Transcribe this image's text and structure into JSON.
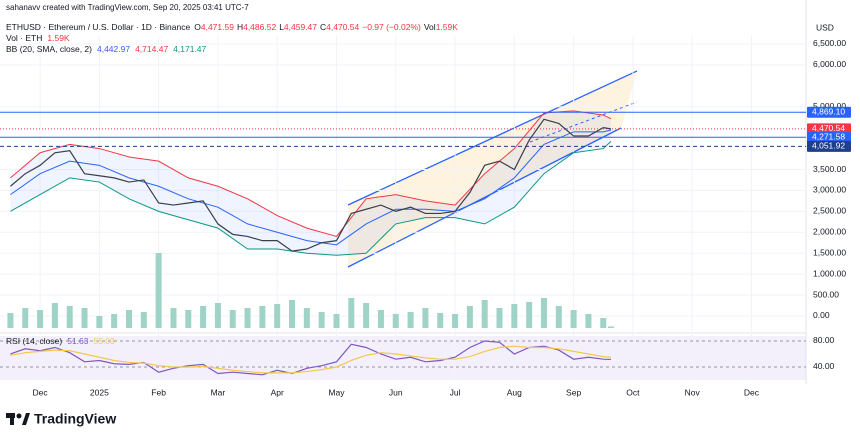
{
  "attribution": "sahanavv created with TradingView.com, Sep 20, 2025 03:41 UTC-7",
  "brand": "TradingView",
  "chart_data": {
    "type": "line",
    "currency": "USD",
    "symbol": "ETHUSD · Ethereum / U.S. Dollar · 1D · Binance",
    "ohlc": [
      {
        "key": "O",
        "text": "4,471.59"
      },
      {
        "key": "H",
        "text": "4,486.52"
      },
      {
        "key": "L",
        "text": "4,459.47"
      },
      {
        "key": "C",
        "text": "4,470.54"
      }
    ],
    "change": "−0.97 (−0.02%)",
    "volume_legend": {
      "key": "Vol",
      "text": "1.59K"
    },
    "volume_title": "Vol · ETH",
    "volume_text": "1.59K",
    "bb_title": "BB (20, SMA, close, 2)",
    "bb_texts": [
      "4,442.97",
      "4,714.47",
      "4,171.47"
    ],
    "rsi_title": "RSI (14, close)",
    "rsi_texts": [
      "51.63",
      "55.03"
    ],
    "x": [
      -0.5,
      -0.25,
      0,
      0.25,
      0.5,
      0.75,
      1,
      1.25,
      1.5,
      1.75,
      2,
      2.25,
      2.5,
      2.75,
      3,
      3.25,
      3.5,
      3.75,
      4,
      4.25,
      4.5,
      4.75,
      5,
      5.25,
      5.5,
      5.75,
      6,
      6.25,
      6.5,
      6.75,
      7,
      7.25,
      7.5,
      7.75,
      8,
      8.25,
      8.5,
      8.75,
      9,
      9.25,
      9.5,
      9.63
    ],
    "xlim": [
      -0.676,
      12.92
    ],
    "xticks": [
      {
        "value": 0,
        "label": "Dec"
      },
      {
        "value": 1,
        "label": "2025"
      },
      {
        "value": 2,
        "label": "Feb"
      },
      {
        "value": 3,
        "label": "Mar"
      },
      {
        "value": 4,
        "label": "Apr"
      },
      {
        "value": 5,
        "label": "May"
      },
      {
        "value": 6,
        "label": "Jun"
      },
      {
        "value": 7,
        "label": "Jul"
      },
      {
        "value": 8,
        "label": "Aug"
      },
      {
        "value": 9,
        "label": "Sep"
      },
      {
        "value": 10,
        "label": "Oct"
      },
      {
        "value": 11,
        "label": "Nov"
      },
      {
        "value": 12,
        "label": "Dec"
      }
    ],
    "ylim": [
      -335,
      6690
    ],
    "yticks": [
      {
        "value": 6500,
        "label": "6,500.00"
      },
      {
        "value": 6000,
        "label": "6,000.00"
      },
      {
        "value": 5000,
        "label": "5,000.00"
      },
      {
        "value": 3500,
        "label": "3,500.00"
      },
      {
        "value": 3000,
        "label": "3,000.00"
      },
      {
        "value": 2500,
        "label": "2,500.00"
      },
      {
        "value": 2000,
        "label": "2,000.00"
      },
      {
        "value": 1500,
        "label": "1,500.00"
      },
      {
        "value": 1000,
        "label": "1,000.00"
      },
      {
        "value": 500,
        "label": "500.00"
      },
      {
        "value": 0,
        "label": "0.00"
      }
    ],
    "volume_ylim": [
      0,
      80
    ],
    "rsi_ylim": [
      20,
      84.6
    ],
    "rsi_yticks": [
      {
        "value": 80,
        "label": "80.00"
      },
      {
        "value": 40,
        "label": "40.00"
      }
    ],
    "series": [
      {
        "color": "#3a3f4b",
        "values": [
          3100,
          3400,
          3600,
          3900,
          3950,
          3400,
          3350,
          3300,
          3200,
          3250,
          2700,
          2650,
          2700,
          2750,
          2200,
          1950,
          1900,
          1800,
          1800,
          1550,
          1600,
          1750,
          1800,
          2450,
          2550,
          2650,
          2500,
          2600,
          2450,
          2450,
          2500,
          2950,
          3600,
          3700,
          3500,
          4200,
          4700,
          4600,
          4300,
          4300,
          4500,
          4470.54
        ]
      },
      {
        "axis": "volume",
        "color": "#9fd3c7",
        "values": [
          15,
          20,
          18,
          25,
          22,
          20,
          12,
          14,
          18,
          16,
          75,
          20,
          18,
          22,
          25,
          18,
          20,
          22,
          24,
          28,
          20,
          16,
          14,
          30,
          25,
          18,
          14,
          16,
          20,
          15,
          14,
          22,
          28,
          20,
          24,
          26,
          30,
          22,
          18,
          14,
          10,
          1.59
        ]
      },
      {
        "axis": "rsi",
        "color": "#7e57c2",
        "values": [
          60,
          68,
          65,
          70,
          62,
          48,
          50,
          45,
          44,
          47,
          32,
          38,
          42,
          44,
          30,
          32,
          30,
          28,
          35,
          30,
          38,
          42,
          48,
          75,
          70,
          60,
          52,
          55,
          48,
          50,
          55,
          70,
          80,
          78,
          60,
          70,
          72,
          66,
          52,
          55,
          52,
          51.63
        ]
      },
      {
        "axis": "rsi",
        "color": "#f2c94c",
        "values": [
          58,
          62,
          64,
          66,
          65,
          60,
          55,
          50,
          47,
          46,
          42,
          40,
          40,
          41,
          38,
          35,
          33,
          31,
          31,
          31,
          33,
          36,
          40,
          50,
          58,
          62,
          60,
          57,
          54,
          52,
          52,
          56,
          64,
          70,
          72,
          70,
          70,
          68,
          64,
          60,
          56,
          55.03
        ]
      }
    ],
    "bands": {
      "x": [
        -0.5,
        0,
        0.5,
        1,
        1.5,
        2,
        2.5,
        3,
        3.5,
        4,
        4.5,
        5,
        5.5,
        6,
        6.5,
        7,
        7.5,
        8,
        8.5,
        9,
        9.5,
        9.63
      ],
      "upper": {
        "color": "#f23645",
        "values": [
          3300,
          3900,
          4100,
          4000,
          3800,
          3700,
          3300,
          3100,
          2800,
          2400,
          2100,
          1900,
          2800,
          2900,
          2750,
          2650,
          3400,
          4000,
          4850,
          4900,
          4800,
          4714.47
        ]
      },
      "basis": {
        "color": "#2962ff",
        "values": [
          2900,
          3400,
          3700,
          3600,
          3300,
          3100,
          2800,
          2600,
          2200,
          2000,
          1800,
          1700,
          2200,
          2550,
          2550,
          2500,
          2800,
          3300,
          4100,
          4400,
          4400,
          4442.97
        ]
      },
      "lower": {
        "color": "#089981",
        "values": [
          2500,
          2900,
          3300,
          3200,
          2800,
          2500,
          2300,
          2100,
          1600,
          1600,
          1500,
          1450,
          1500,
          2200,
          2350,
          2350,
          2200,
          2600,
          3400,
          3900,
          4000,
          4171.47
        ]
      }
    },
    "price_labels": [
      {
        "value": 4869.1,
        "label": "4,869.10",
        "color": "#2962ff",
        "line": "solid"
      },
      {
        "value": 4470.54,
        "label": "4,470.54",
        "color": "#f23645",
        "line": "dotted"
      },
      {
        "value": 4271.58,
        "label": "4,271.58",
        "color": "#2962ff",
        "line": "solid"
      },
      {
        "value": 4051.92,
        "label": "4,051.92",
        "color": "#1e3f8a",
        "line": "dashed"
      }
    ]
  }
}
